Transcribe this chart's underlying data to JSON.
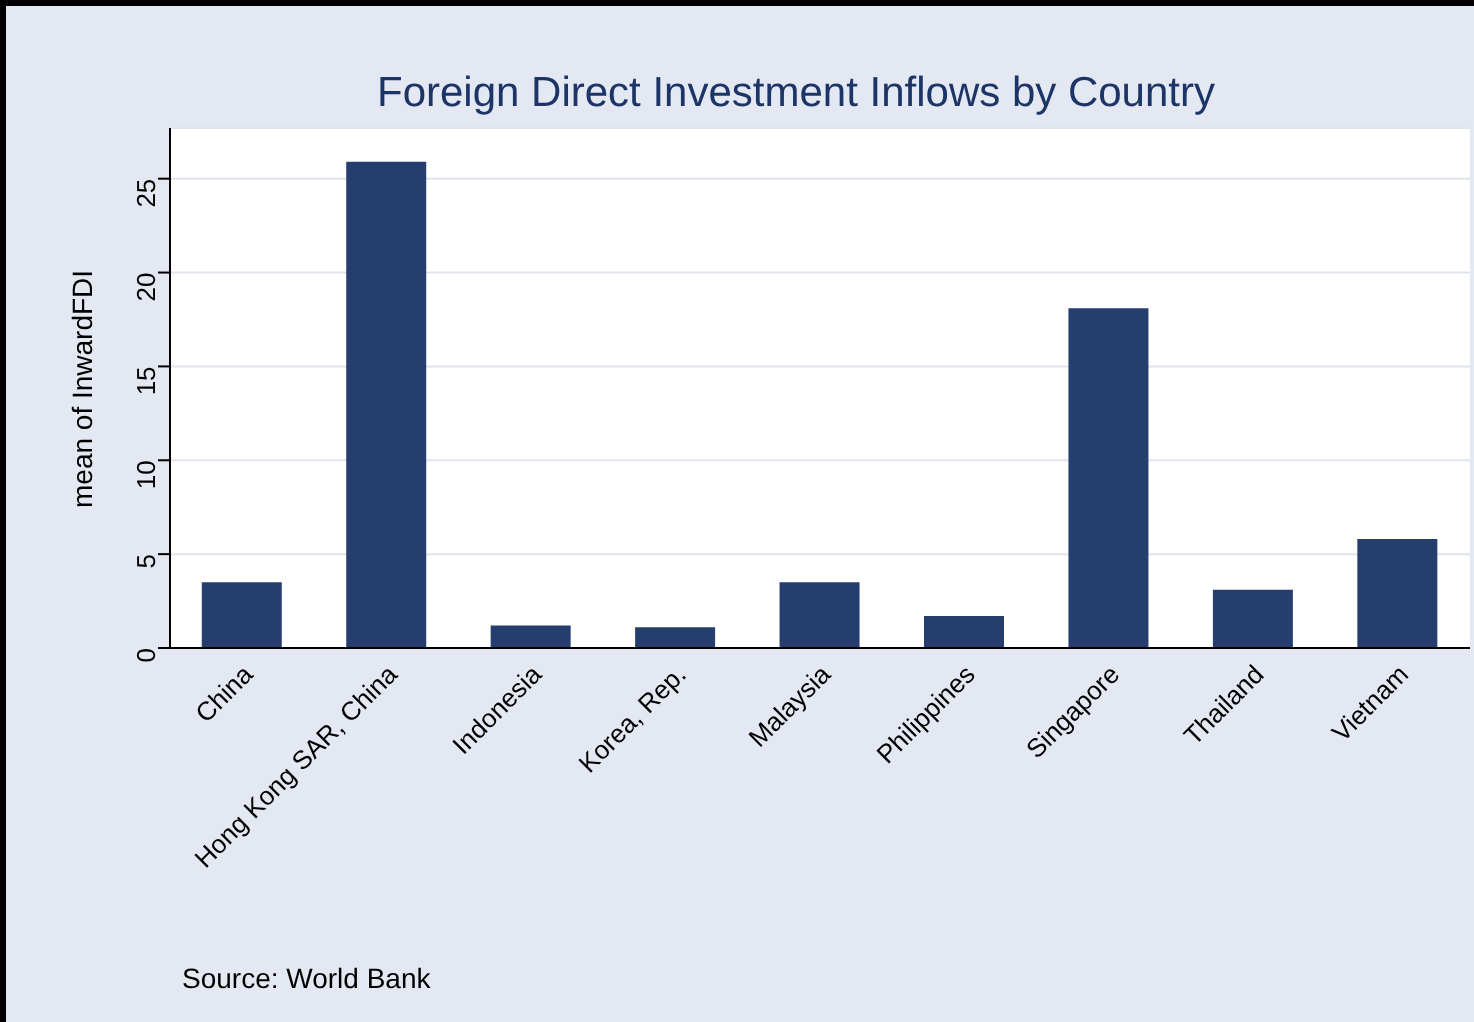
{
  "chart_data": {
    "type": "bar",
    "title": "Foreign Direct Investment Inflows by Country",
    "ylabel": "mean of InwardFDI",
    "categories": [
      "China",
      "Hong Kong SAR, China",
      "Indonesia",
      "Korea, Rep.",
      "Malaysia",
      "Philippines",
      "Singapore",
      "Thailand",
      "Vietnam"
    ],
    "values": [
      3.5,
      25.9,
      1.2,
      1.1,
      3.5,
      1.7,
      18.1,
      3.1,
      5.8
    ],
    "color": "#263e6d",
    "ylim": [
      0,
      27.7
    ],
    "yticks": [
      0,
      5,
      10,
      15,
      20,
      25
    ],
    "grid": "y",
    "annotations": [
      "Source: World Bank"
    ]
  }
}
